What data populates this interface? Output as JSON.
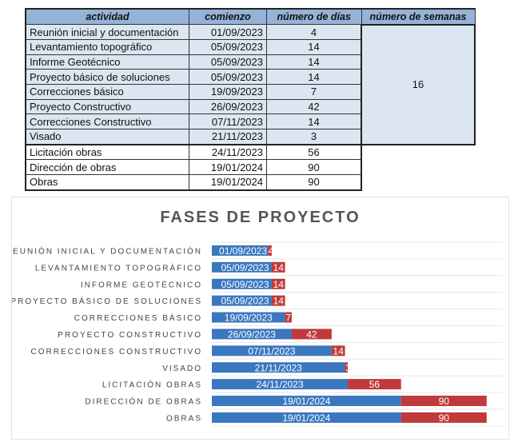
{
  "table": {
    "headers": [
      "actividad",
      "comienzo",
      "número de días",
      "número de semanas"
    ],
    "weeks_total": "16",
    "rows": [
      [
        "Reunión inicial y documentación",
        "01/09/2023",
        "4"
      ],
      [
        "Levantamiento topográfico",
        "05/09/2023",
        "14"
      ],
      [
        "Informe Geotécnico",
        "05/09/2023",
        "14"
      ],
      [
        "Proyecto básico de soluciones",
        "05/09/2023",
        "14"
      ],
      [
        "Correcciones básico",
        "19/09/2023",
        "7"
      ],
      [
        "Proyecto Constructivo",
        "26/09/2023",
        "42"
      ],
      [
        "Correcciones Constructivo",
        "07/11/2023",
        "14"
      ],
      [
        "Visado",
        "21/11/2023",
        "3"
      ],
      [
        "Licitación obras",
        "24/11/2023",
        "56"
      ],
      [
        "Dirección de obras",
        "19/01/2024",
        "90"
      ],
      [
        "Obras",
        "19/01/2024",
        "90"
      ]
    ]
  },
  "chart_data": {
    "type": "bar",
    "orientation": "horizontal-stacked-gantt",
    "title": "FASES DE PROYECTO",
    "categories": [
      "REUNIÓN INICIAL Y DOCUMENTACIÓN",
      "LEVANTAMIENTO TOPOGRÁFICO",
      "INFORME GEOTÉCNICO",
      "PROYECTO BÁSICO DE SOLUCIONES",
      "CORRECCIONES BÁSICO",
      "PROYECTO CONSTRUCTIVO",
      "CORRECCIONES CONSTRUCTIVO",
      "VISADO",
      "LICITACIÓN OBRAS",
      "DIRECCIÓN DE OBRAS",
      "OBRAS"
    ],
    "series": [
      {
        "name": "comienzo",
        "color": "#3a77bf",
        "values": [
          "01/09/2023",
          "05/09/2023",
          "05/09/2023",
          "05/09/2023",
          "19/09/2023",
          "26/09/2023",
          "07/11/2023",
          "21/11/2023",
          "24/11/2023",
          "19/01/2024",
          "19/01/2024"
        ]
      },
      {
        "name": "número de días",
        "color": "#c0393b",
        "values": [
          4,
          14,
          14,
          14,
          7,
          42,
          14,
          3,
          56,
          90,
          90
        ]
      }
    ],
    "xlim_serial": [
      45111,
      45417
    ],
    "grid": true
  }
}
